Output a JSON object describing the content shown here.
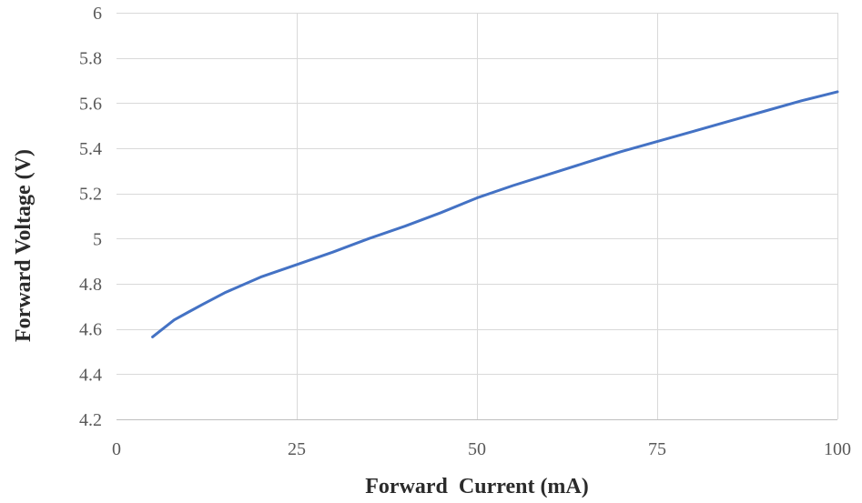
{
  "chart_data": {
    "type": "line",
    "title": "",
    "xlabel": "Forward  Current (mA)",
    "ylabel": "Forward Voltage (V)",
    "xlim": [
      0,
      100
    ],
    "ylim": [
      4.2,
      6
    ],
    "x_ticks": [
      "0",
      "25",
      "50",
      "75",
      "100"
    ],
    "y_ticks": [
      "4.2",
      "4.4",
      "4.6",
      "4.8",
      "5",
      "5.2",
      "5.4",
      "5.6",
      "5.8",
      "6"
    ],
    "x_tick_values": [
      0,
      25,
      50,
      75,
      100
    ],
    "y_tick_values": [
      4.2,
      4.4,
      4.6,
      4.8,
      5.0,
      5.2,
      5.4,
      5.6,
      5.8,
      6.0
    ],
    "grid": true,
    "legend": "none",
    "series": [
      {
        "color": "#4472c4",
        "x": [
          5,
          6,
          8,
          10,
          12,
          15,
          20,
          25,
          30,
          35,
          40,
          45,
          50,
          55,
          60,
          65,
          70,
          75,
          80,
          85,
          90,
          95,
          100
        ],
        "y": [
          4.565,
          4.59,
          4.64,
          4.675,
          4.71,
          4.76,
          4.83,
          4.885,
          4.94,
          5.0,
          5.055,
          5.115,
          5.18,
          5.235,
          5.285,
          5.335,
          5.385,
          5.43,
          5.475,
          5.52,
          5.565,
          5.61,
          5.65
        ]
      }
    ]
  }
}
